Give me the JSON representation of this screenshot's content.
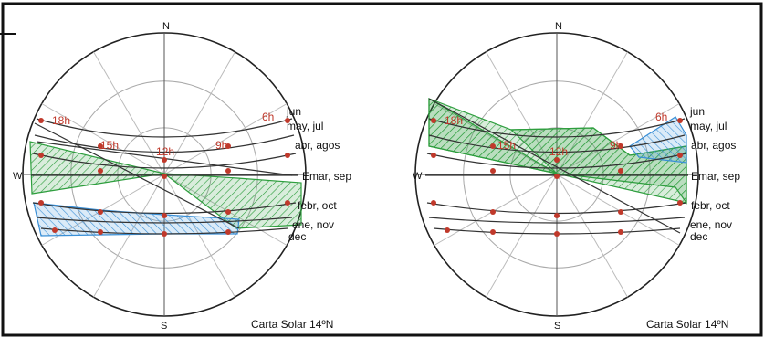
{
  "colors": {
    "frame": "#111111",
    "grid": "#999999",
    "path": "#333333",
    "hour": "#c0392b",
    "shade_green": "#2e9e3e",
    "shade_blue": "#3a8fd6"
  },
  "diagrams": [
    {
      "id": "left",
      "compass": {
        "north": "N",
        "south": "S",
        "west": "W"
      },
      "hours": [
        "18h",
        "15h",
        "12h",
        "9h",
        "6h"
      ],
      "months": [
        "jun",
        "may, jul",
        "abr, agos",
        "Emar, sep",
        "febr, oct",
        "ene, nov",
        "dec"
      ],
      "caption": "Carta Solar 14ºN",
      "green_shade": "band crossing center from W to SE",
      "blue_shade": "band below horizon W side"
    },
    {
      "id": "right",
      "compass": {
        "north": "N",
        "south": "S",
        "west": "W"
      },
      "hours": [
        "18h",
        "15h",
        "12h",
        "9h",
        "6h"
      ],
      "months": [
        "jun",
        "may, jul",
        "abr, agos",
        "Emar, sep",
        "febr, oct",
        "ene, nov",
        "dec"
      ],
      "caption": "Carta Solar 14ºN",
      "green_shade": "band from NW down to center",
      "blue_shade": "band upper right"
    }
  ]
}
